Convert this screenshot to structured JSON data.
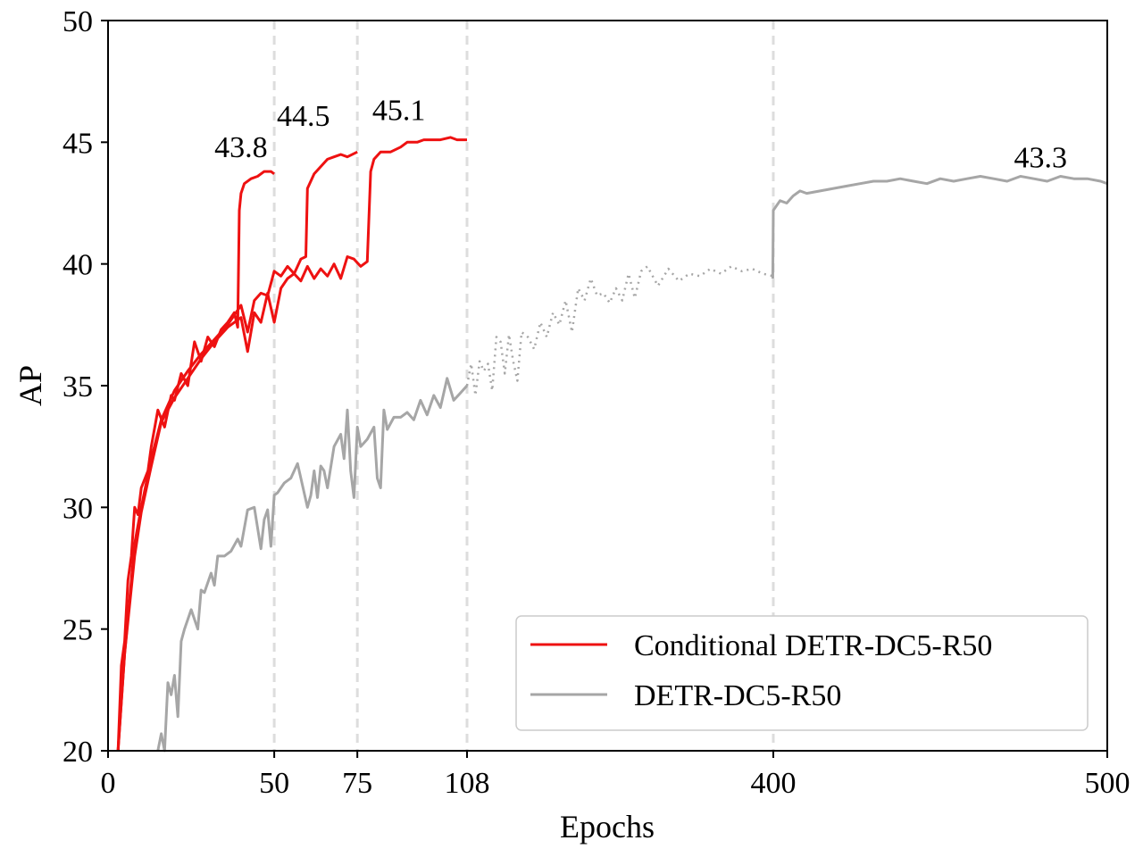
{
  "chart_data": {
    "type": "line",
    "xlabel": "Epochs",
    "ylabel": "AP",
    "ylim": [
      20,
      50
    ],
    "xlim": [
      0,
      500
    ],
    "x_axis_scale": "piecewise (0-108 expanded, 108-400 compressed, 400-500 expanded)",
    "xticks": [
      0,
      50,
      75,
      108,
      400,
      500
    ],
    "yticks": [
      20,
      25,
      30,
      35,
      40,
      45,
      50
    ],
    "vlines": [
      50,
      75,
      108,
      400
    ],
    "grid": false,
    "legend_position": "bottom-right",
    "colors": {
      "conditional": "#ee1111",
      "detr": "#a6a6a6",
      "vline": "#dddddd"
    },
    "legend": [
      "Conditional DETR-DC5-R50",
      "DETR-DC5-R50"
    ],
    "series": [
      {
        "name": "Conditional DETR-DC5-R50",
        "run": "50 epochs",
        "color": "#ee1111",
        "style": "solid",
        "x": [
          3,
          4,
          5,
          6,
          7,
          8,
          9,
          10,
          12,
          13,
          15,
          17,
          19,
          20,
          22,
          24,
          26,
          28,
          30,
          32,
          34,
          36,
          38,
          39,
          39.5,
          40,
          41,
          43,
          45,
          47,
          49,
          50
        ],
        "y": [
          20,
          23.5,
          24.5,
          27,
          28,
          30,
          29.7,
          30.8,
          31.5,
          32.5,
          34,
          33.3,
          34.6,
          34.4,
          35.5,
          35,
          36.8,
          36,
          37,
          36.6,
          37.3,
          37.6,
          38,
          37.4,
          42.2,
          42.9,
          43.3,
          43.5,
          43.6,
          43.8,
          43.8,
          43.7
        ]
      },
      {
        "name": "Conditional DETR-DC5-R50",
        "run": "75 epochs",
        "color": "#ee1111",
        "style": "solid",
        "x": [
          3,
          5,
          8,
          10,
          13,
          16,
          20,
          24,
          28,
          32,
          36,
          40,
          42,
          44,
          46,
          48,
          50,
          52,
          54,
          56,
          58,
          59.5,
          60,
          62,
          64,
          66,
          68,
          70,
          72,
          75
        ],
        "y": [
          20,
          24,
          28.5,
          30,
          32,
          33.6,
          34.8,
          35.6,
          36.3,
          36.9,
          37.5,
          38.3,
          37.2,
          38.5,
          38.8,
          38.7,
          39.7,
          39.5,
          39.9,
          39.6,
          40.2,
          40.3,
          43.1,
          43.7,
          44,
          44.3,
          44.4,
          44.5,
          44.4,
          44.6
        ]
      },
      {
        "name": "Conditional DETR-DC5-R50",
        "run": "108 epochs",
        "color": "#ee1111",
        "style": "solid",
        "x": [
          3,
          5,
          8,
          10,
          13,
          16,
          20,
          24,
          28,
          32,
          36,
          40,
          42,
          44,
          46,
          48,
          50,
          52,
          54,
          56,
          58,
          60,
          62,
          64,
          66,
          68,
          70,
          72,
          74,
          76,
          78,
          79,
          80,
          82,
          85,
          88,
          90,
          93,
          95,
          98,
          100,
          103,
          105,
          108
        ],
        "y": [
          20,
          24,
          28,
          29.8,
          31.7,
          33.5,
          34.5,
          35.3,
          36.1,
          36.8,
          37.4,
          37.8,
          36.4,
          38,
          37.6,
          38.8,
          37.6,
          39,
          39.4,
          39.6,
          39.3,
          39.9,
          39.4,
          39.8,
          39.5,
          40,
          39.4,
          40.3,
          40.2,
          39.9,
          40.1,
          43.8,
          44.3,
          44.6,
          44.6,
          44.8,
          45,
          45,
          45.1,
          45.1,
          45.1,
          45.2,
          45.1,
          45.1
        ]
      },
      {
        "name": "DETR-DC5-R50",
        "run": "0-108",
        "color": "#a6a6a6",
        "style": "solid",
        "x": [
          15,
          16,
          17,
          18,
          19,
          20,
          21,
          22,
          23,
          25,
          27,
          28,
          29,
          31,
          32,
          33,
          35,
          37,
          39,
          40,
          42,
          44,
          46,
          47,
          48,
          49,
          50,
          51,
          53,
          55,
          57,
          58,
          60,
          61,
          62,
          63,
          64,
          65,
          66,
          68,
          70,
          71,
          72,
          73,
          74,
          75,
          76,
          78,
          80,
          81,
          82,
          83,
          84,
          86,
          88,
          90,
          92,
          94,
          96,
          98,
          100,
          102,
          104,
          106,
          108
        ],
        "y": [
          20,
          20.7,
          20,
          22.8,
          22.3,
          23.1,
          21.4,
          24.5,
          25,
          25.8,
          25,
          26.6,
          26.5,
          27.3,
          26.8,
          28,
          28,
          28.2,
          28.7,
          28.4,
          29.9,
          30,
          28.3,
          29.5,
          29.9,
          28.4,
          30.5,
          30.6,
          31,
          31.2,
          31.8,
          31.2,
          30,
          30.5,
          31.5,
          30.4,
          31.7,
          31.5,
          30.8,
          32.5,
          33,
          32,
          34,
          31.5,
          30.4,
          33.3,
          32.5,
          32.8,
          33.3,
          31.2,
          30.8,
          34,
          33.2,
          33.7,
          33.7,
          33.9,
          33.6,
          34.4,
          33.8,
          34.6,
          34.1,
          35.3,
          34.4,
          34.7,
          35
        ]
      },
      {
        "name": "DETR-DC5-R50",
        "run": "108-400",
        "color": "#a6a6a6",
        "style": "dotted",
        "x": [
          108,
          112,
          116,
          120,
          124,
          128,
          132,
          136,
          140,
          144,
          148,
          152,
          156,
          160,
          166,
          172,
          178,
          184,
          190,
          196,
          202,
          208,
          214,
          220,
          226,
          232,
          238,
          244,
          250,
          256,
          262,
          268,
          274,
          280,
          290,
          300,
          310,
          320,
          330,
          340,
          350,
          360,
          370,
          380,
          390,
          400
        ],
        "y": [
          35,
          35.9,
          34.6,
          36,
          35.6,
          35.9,
          34.8,
          37,
          36.8,
          35.5,
          37.1,
          36,
          35.2,
          37.2,
          37,
          36.5,
          37.6,
          37,
          38,
          37.5,
          38.5,
          37.2,
          39,
          38.5,
          39.4,
          38.7,
          38.8,
          38.4,
          39,
          38.5,
          39.6,
          38.6,
          39.7,
          39.9,
          39.1,
          39.8,
          39.3,
          39.6,
          39.5,
          39.8,
          39.6,
          39.9,
          39.7,
          39.8,
          39.6,
          39.5
        ]
      },
      {
        "name": "DETR-DC5-R50",
        "run": "400-500",
        "color": "#a6a6a6",
        "style": "solid",
        "x": [
          399.5,
          400,
          402,
          404,
          406,
          408,
          410,
          414,
          418,
          422,
          426,
          430,
          434,
          438,
          442,
          446,
          450,
          454,
          458,
          462,
          466,
          470,
          474,
          478,
          482,
          486,
          490,
          494,
          498,
          500
        ],
        "y": [
          39.4,
          42.2,
          42.6,
          42.5,
          42.8,
          43,
          42.9,
          43,
          43.1,
          43.2,
          43.3,
          43.4,
          43.4,
          43.5,
          43.4,
          43.3,
          43.5,
          43.4,
          43.5,
          43.6,
          43.5,
          43.4,
          43.6,
          43.5,
          43.4,
          43.6,
          43.5,
          43.5,
          43.4,
          43.3
        ]
      }
    ],
    "annotations": [
      {
        "text": "43.8",
        "x": 40,
        "y": 43.8
      },
      {
        "text": "44.5",
        "x": 62,
        "y": 44.5
      },
      {
        "text": "45.1",
        "x": 95,
        "y": 45.1
      },
      {
        "text": "43.3",
        "x": 480,
        "y": 43.3
      }
    ]
  }
}
